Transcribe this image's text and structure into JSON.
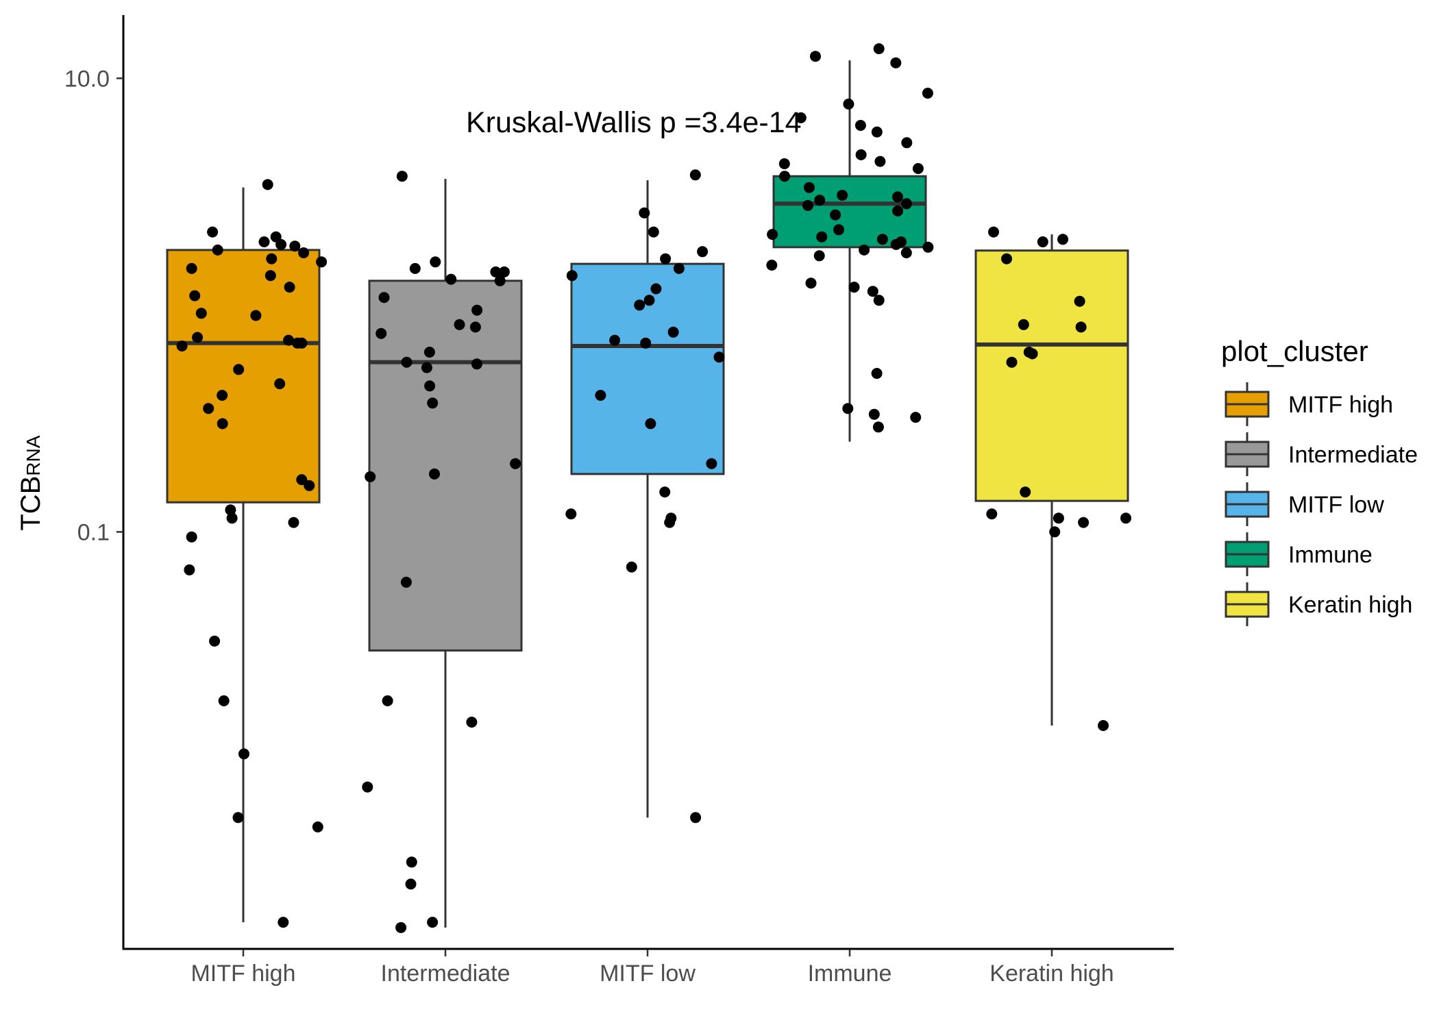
{
  "chart_data": {
    "type": "box",
    "y_scale": "log10",
    "ylim": [
      0.00145,
      19
    ],
    "ylabel": "TCB",
    "ylabel_subscript": "RNA",
    "xlabel": "",
    "y_ticks": [
      {
        "value": 0.1,
        "label": "0.1"
      },
      {
        "value": 10,
        "label": "10.0"
      }
    ],
    "annotation": "Kruskal-Wallis p =3.4e-14",
    "legend": {
      "title": "plot_cluster",
      "position": "right"
    },
    "grid": false,
    "categories": [
      "MITF high",
      "Intermediate",
      "MITF low",
      "Immune",
      "Keratin high"
    ],
    "colors": [
      "#E69F00",
      "#999999",
      "#56B4E9",
      "#009E73",
      "#F0E442"
    ],
    "boxes": [
      {
        "category": "MITF high",
        "whisker_low": 0.0019,
        "q1": 0.135,
        "median": 0.68,
        "q3": 1.75,
        "whisker_high": 3.3
      },
      {
        "category": "Intermediate",
        "whisker_low": 0.0018,
        "q1": 0.03,
        "median": 0.56,
        "q3": 1.28,
        "whisker_high": 3.6
      },
      {
        "category": "MITF low",
        "whisker_low": 0.0055,
        "q1": 0.18,
        "median": 0.66,
        "q3": 1.52,
        "whisker_high": 3.55
      },
      {
        "category": "Immune",
        "whisker_low": 0.25,
        "q1": 1.8,
        "median": 2.8,
        "q3": 3.7,
        "whisker_high": 12
      },
      {
        "category": "Keratin high",
        "whisker_low": 0.014,
        "q1": 0.137,
        "median": 0.67,
        "q3": 1.74,
        "whisker_high": 2.05
      }
    ],
    "points": [
      {
        "category": "MITF high",
        "values": [
          3.4,
          2.1,
          1.9,
          1.55,
          1.6,
          1.35,
          1.45,
          1.7,
          2.0,
          1.82,
          1.85,
          1.75,
          1.2,
          1.1,
          0.9,
          0.92,
          0.72,
          0.7,
          0.68,
          0.68,
          0.66,
          0.52,
          0.45,
          0.4,
          0.35,
          0.3,
          0.16,
          0.17,
          0.125,
          0.115,
          0.11,
          0.095,
          0.068,
          0.033,
          0.018,
          0.0105,
          0.005,
          0.0055,
          0.0019
        ]
      },
      {
        "category": "Intermediate",
        "values": [
          3.7,
          1.55,
          1.4,
          1.4,
          1.45,
          1.3,
          1.28,
          0.95,
          1.08,
          0.82,
          0.75,
          0.8,
          0.62,
          0.55,
          0.56,
          0.53,
          0.44,
          0.37,
          0.2,
          0.18,
          0.175,
          0.06,
          0.018,
          0.0145,
          0.0075,
          0.0035,
          0.0028,
          0.0019,
          0.0018
        ]
      },
      {
        "category": "MITF low",
        "values": [
          3.75,
          2.55,
          2.1,
          1.72,
          1.6,
          1.45,
          1.35,
          1.18,
          1.0,
          1.05,
          0.76,
          0.7,
          0.68,
          0.59,
          0.4,
          0.3,
          0.2,
          0.15,
          0.12,
          0.11,
          0.115,
          0.07,
          0.0055
        ]
      },
      {
        "category": "Immune",
        "values": [
          13.5,
          12.5,
          11.7,
          8.6,
          7.7,
          6.7,
          6.2,
          5.8,
          5.2,
          4.6,
          4.3,
          4.2,
          4.0,
          3.7,
          3.3,
          3.05,
          3.0,
          2.9,
          2.8,
          2.75,
          2.6,
          2.5,
          2.15,
          2.05,
          2.0,
          1.95,
          1.9,
          1.85,
          1.8,
          1.75,
          1.7,
          1.65,
          1.5,
          1.25,
          1.2,
          1.15,
          1.05,
          0.5,
          0.35,
          0.33,
          0.32,
          0.29
        ]
      },
      {
        "category": "Keratin high",
        "values": [
          2.1,
          1.95,
          1.6,
          1.04,
          1.9,
          0.82,
          0.8,
          0.62,
          0.61,
          0.56,
          0.15,
          0.12,
          0.115,
          0.115,
          0.11,
          0.1,
          0.014
        ]
      }
    ]
  }
}
